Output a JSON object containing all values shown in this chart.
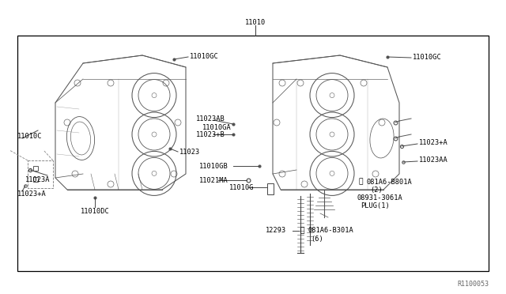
{
  "title": "11010",
  "ref_code": "R1100053",
  "bg_color": "#ffffff",
  "border_color": "#000000",
  "line_color": "#333333",
  "text_color": "#000000",
  "labels": {
    "top_center": "11010",
    "left_block_top": "11010GC",
    "right_block_top": "11010GC",
    "left_11010C_top": "11010C",
    "left_11010DC": "11010DC",
    "left_11010C_bot": "11010DC",
    "left_11023A": "11023A",
    "left_11023pA": "11023+A",
    "center_11023AB": "11023AB",
    "center_11010GA": "11010GA",
    "center_11023pB": "11023+B",
    "center_11023": "11023",
    "center_11010GB": "11010GB",
    "center_11021MA": "11021MA",
    "center_11010G": "11010G",
    "right_11023pA": "11023+A",
    "right_11023AA": "11023AA",
    "bottom_12293": "12293",
    "bottom_b081A6B301A": "081A6-B301A",
    "bottom_b6": "(6)",
    "bottom_b081A6B801A": "081A6-B801A",
    "bottom_b2": "(2)",
    "bottom_08931": "08931-3061A",
    "bottom_plug": "PLUG(1)",
    "ref": "R1100053"
  },
  "fig_width": 6.4,
  "fig_height": 3.72,
  "dpi": 100
}
